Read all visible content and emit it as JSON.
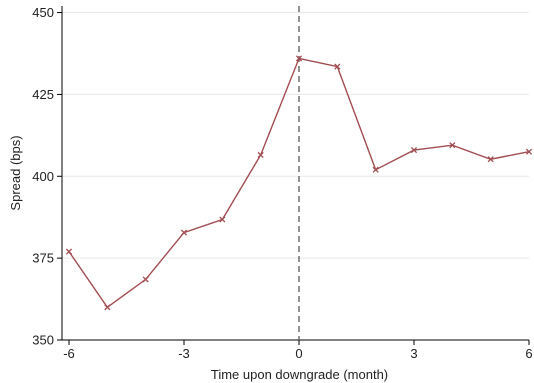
{
  "chart_data": {
    "type": "line",
    "xlabel": "Time upon downgrade (month)",
    "ylabel": "Spread (bps)",
    "xlim": [
      -6,
      6
    ],
    "ylim": [
      350,
      452
    ],
    "x_ticks": [
      "-6",
      "-3",
      "0",
      "3",
      "6"
    ],
    "y_ticks": [
      "350",
      "375",
      "400",
      "425",
      "450"
    ],
    "grid": "horizontal",
    "reference_line": {
      "x": 0,
      "style": "dashed"
    },
    "series": [
      {
        "x": [
          -6,
          -5,
          -4,
          -3,
          -2,
          -1,
          0,
          1,
          2,
          3,
          4,
          5,
          6
        ],
        "values": [
          377,
          360,
          368.5,
          382.8,
          386.8,
          406.5,
          436,
          433.5,
          402,
          408,
          409.5,
          405.2,
          407.5
        ]
      }
    ],
    "colors": {
      "series": "#a14d52",
      "grid": "#e8e8e8",
      "axis": "#000000",
      "refline": "#6e6e6e"
    }
  }
}
